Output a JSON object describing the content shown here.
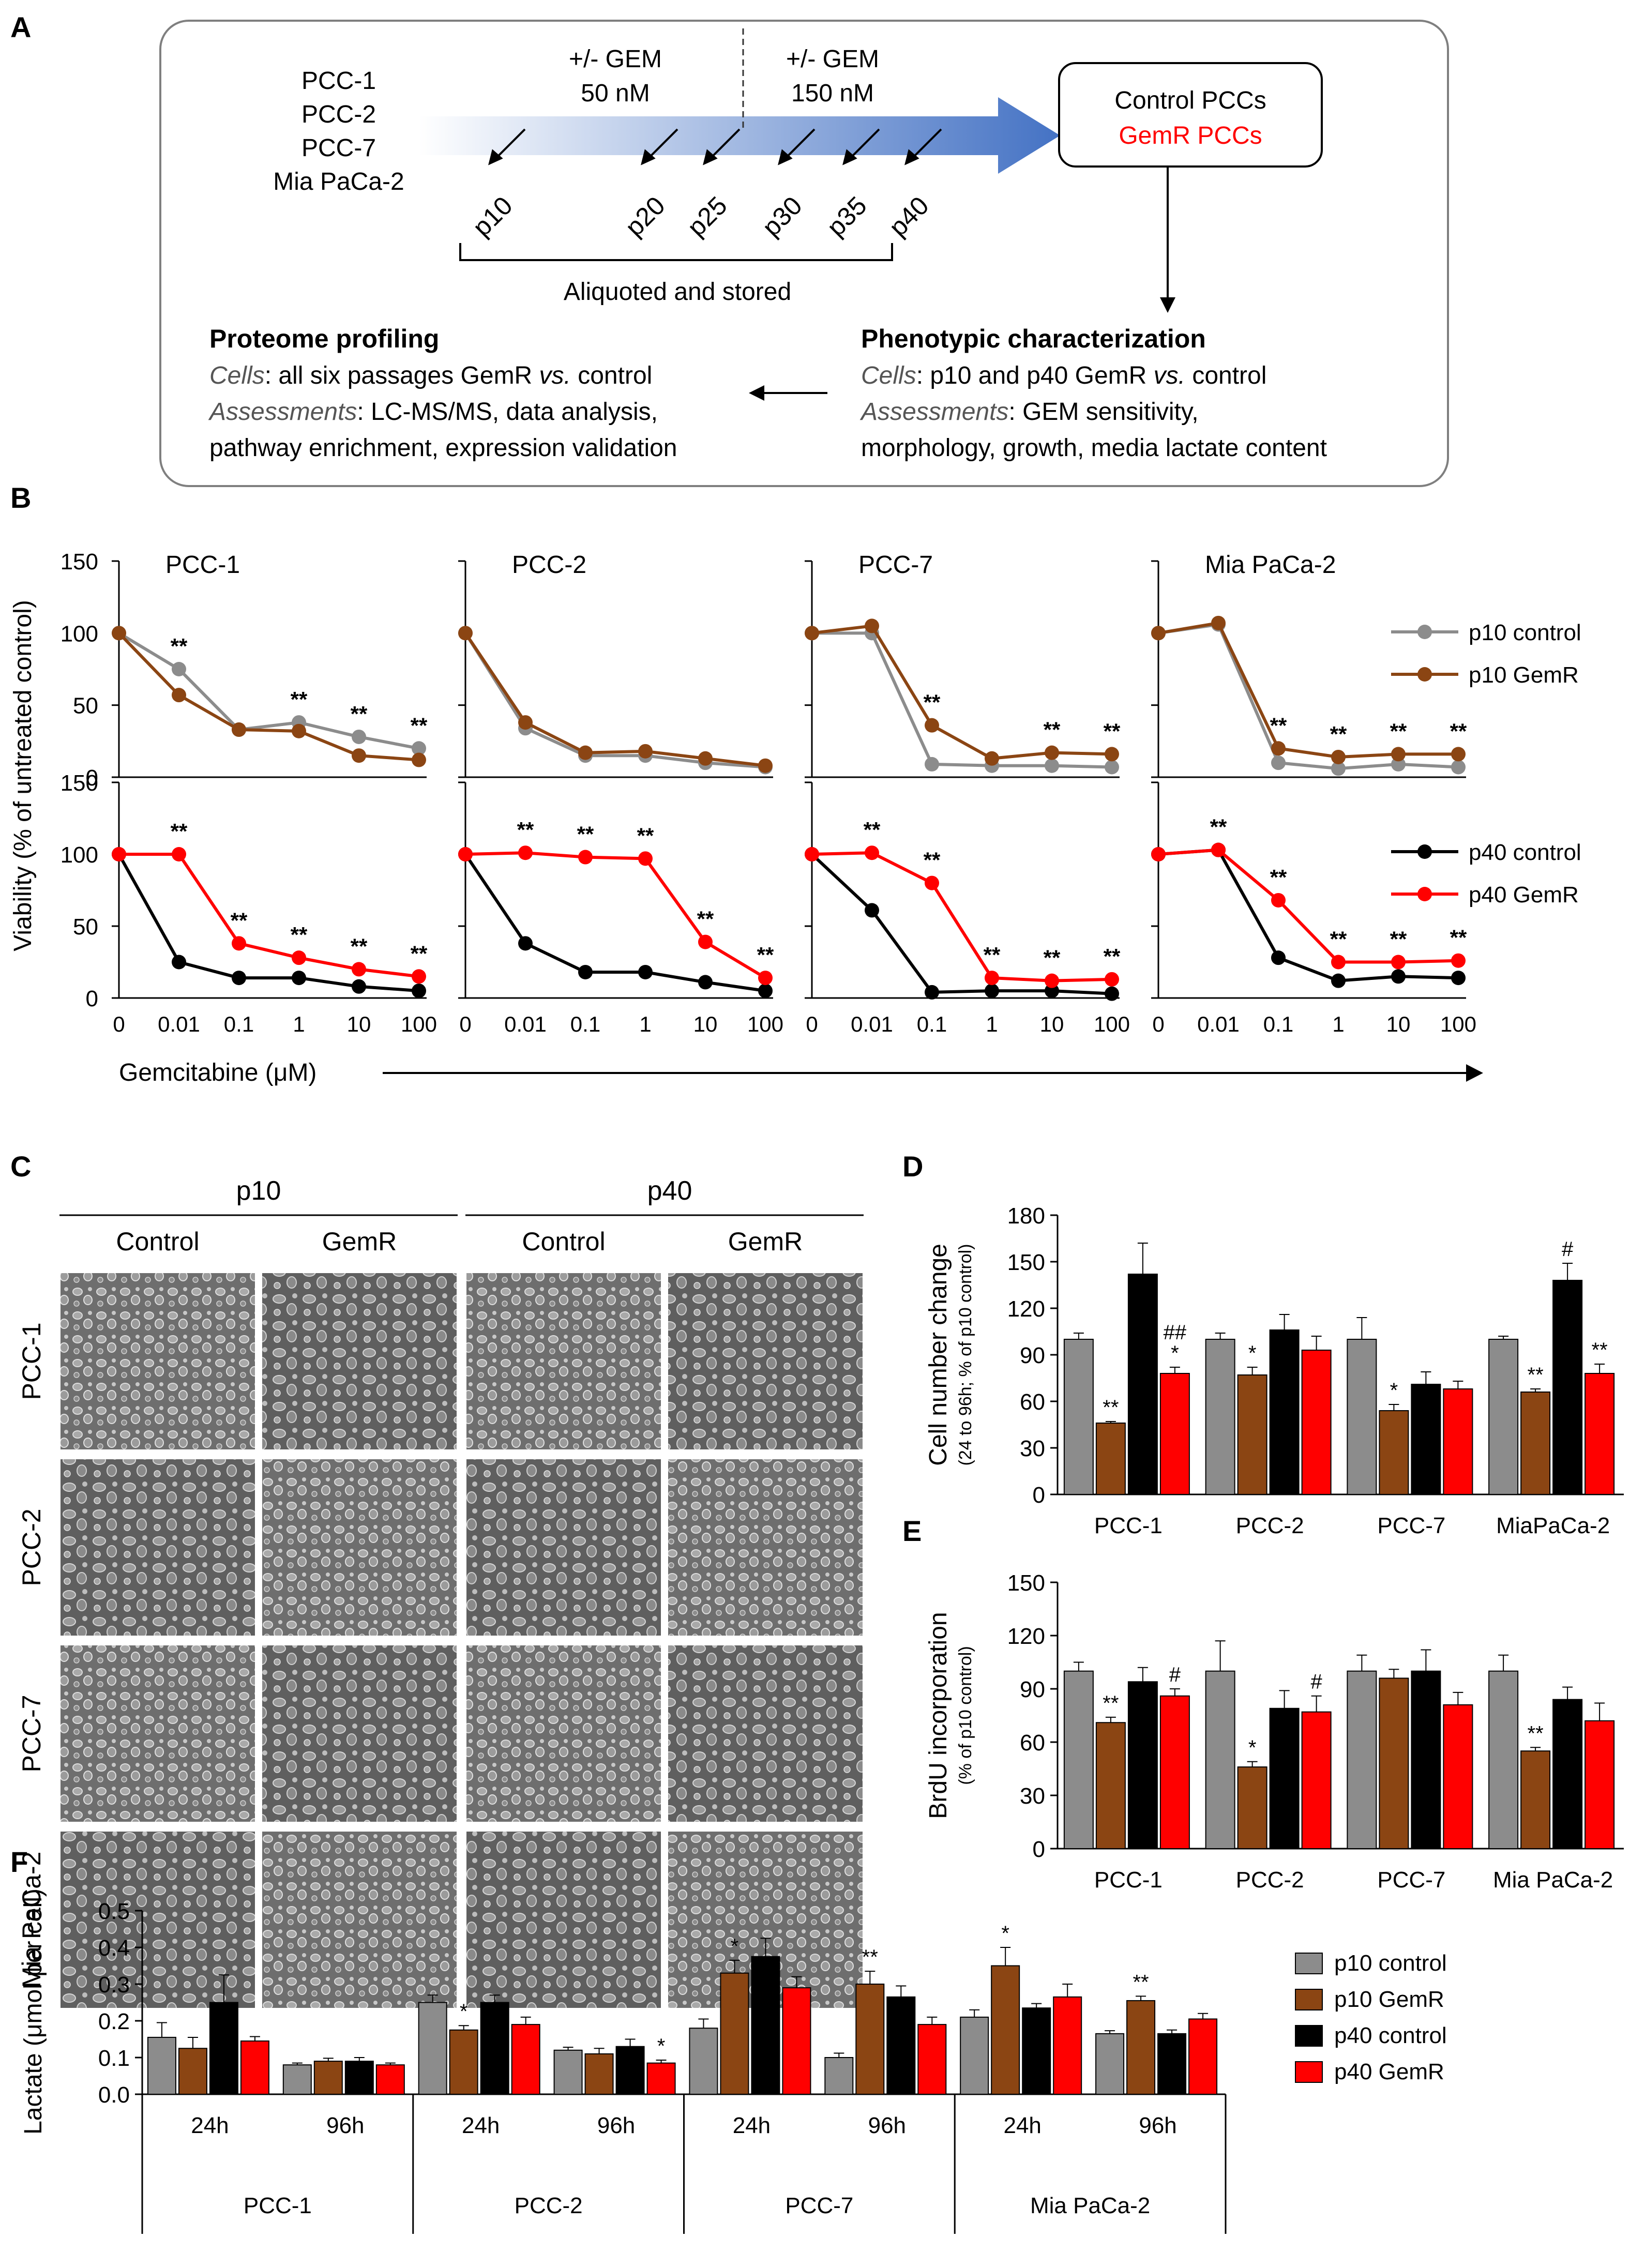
{
  "colors": {
    "p10_control": "#8c8c8c",
    "p10_gemr": "#8b4513",
    "p40_control": "#000000",
    "p40_gemr": "#ff0000",
    "arrow_blue": "#4472c4",
    "gemr_text": "#ff0000"
  },
  "panel_labels": {
    "a": "A",
    "b": "B",
    "c": "C",
    "d": "D",
    "e": "E",
    "f": "F"
  },
  "panel_a": {
    "cell_lines": [
      "PCC-1",
      "PCC-2",
      "PCC-7",
      "Mia PaCa-2"
    ],
    "gem_low": [
      "+/- GEM",
      "50 nM"
    ],
    "gem_high": [
      "+/- GEM",
      "150 nM"
    ],
    "passages": [
      "p10",
      "p20",
      "p25",
      "p30",
      "p35",
      "p40"
    ],
    "aliquoted_label": "Aliquoted and stored",
    "control_pccs": "Control PCCs",
    "gemr_pccs": "GemR PCCs",
    "proteome": {
      "title": "Proteome profiling",
      "cells_label": "Cells",
      "cells_text": ": all six passages GemR ",
      "vs": "vs.",
      "cells_tail": " control",
      "assess_label": "Assessments",
      "assess_text": ": LC-MS/MS, data analysis,",
      "assess_line2": "pathway enrichment, expression validation"
    },
    "phenotypic": {
      "title": "Phenotypic characterization",
      "cells_label": "Cells",
      "cells_text": ": p10 and p40 GemR ",
      "vs": "vs.",
      "cells_tail": " control",
      "assess_label": "Assessments",
      "assess_text": ": GEM sensitivity,",
      "assess_line2": "morphology, growth, media lactate content"
    }
  },
  "chart_data": [
    {
      "id": "B",
      "type": "line",
      "ylabel": "Viability (% of untreated control)",
      "xlabel": "Gemcitabine (μM)",
      "x_categories": [
        "0",
        "0.01",
        "0.1",
        "1",
        "10",
        "100"
      ],
      "ylim": [
        0,
        150
      ],
      "yticks": [
        "0",
        "50",
        "100",
        "150"
      ],
      "legend_top": [
        "p10 control",
        "p10 GemR"
      ],
      "legend_bottom": [
        "p40 control",
        "p40 GemR"
      ],
      "panels": [
        {
          "title": "PCC-1",
          "p10_control": [
            100,
            75,
            33,
            38,
            28,
            20
          ],
          "p10_gemr": [
            100,
            57,
            33,
            32,
            15,
            12
          ],
          "p40_control": [
            100,
            25,
            14,
            14,
            8,
            5
          ],
          "p40_gemr": [
            100,
            100,
            38,
            28,
            20,
            15
          ],
          "sig_top": [
            "",
            "**",
            "",
            "**",
            "**",
            "**"
          ],
          "sig_bottom": [
            "",
            "**",
            "**",
            "**",
            "**",
            "**"
          ]
        },
        {
          "title": "PCC-2",
          "p10_control": [
            100,
            34,
            15,
            15,
            10,
            7
          ],
          "p10_gemr": [
            100,
            38,
            17,
            18,
            13,
            8
          ],
          "p40_control": [
            100,
            38,
            18,
            18,
            11,
            5
          ],
          "p40_gemr": [
            100,
            101,
            98,
            97,
            39,
            14
          ],
          "sig_top": [
            "",
            "",
            "",
            "",
            "",
            ""
          ],
          "sig_bottom": [
            "",
            "**",
            "**",
            "**",
            "**",
            "**"
          ]
        },
        {
          "title": "PCC-7",
          "p10_control": [
            100,
            100,
            9,
            8,
            8,
            7
          ],
          "p10_gemr": [
            100,
            105,
            36,
            13,
            17,
            16
          ],
          "p40_control": [
            100,
            61,
            4,
            5,
            5,
            3
          ],
          "p40_gemr": [
            100,
            101,
            80,
            14,
            12,
            13
          ],
          "sig_top": [
            "",
            "",
            "**",
            "",
            "**",
            "**"
          ],
          "sig_bottom": [
            "",
            "**",
            "**",
            "**",
            "**",
            "**"
          ]
        },
        {
          "title": "Mia PaCa-2",
          "p10_control": [
            100,
            106,
            10,
            6,
            9,
            7
          ],
          "p10_gemr": [
            100,
            107,
            20,
            14,
            16,
            16
          ],
          "p40_control": [
            100,
            103,
            28,
            12,
            15,
            14
          ],
          "p40_gemr": [
            100,
            103,
            68,
            25,
            25,
            26
          ],
          "sig_top": [
            "",
            "",
            "**",
            "**",
            "**",
            "**"
          ],
          "sig_bottom": [
            "",
            "**",
            "**",
            "**",
            "**",
            "**"
          ]
        }
      ]
    },
    {
      "id": "D",
      "type": "bar",
      "ylabel": "Cell number change",
      "ylabel2": "(24 to 96h; % of p10 control)",
      "categories": [
        "PCC-1",
        "PCC-2",
        "PCC-7",
        "MiaPaCa-2"
      ],
      "ylim": [
        0,
        180
      ],
      "yticks": [
        "0",
        "30",
        "60",
        "90",
        "120",
        "150",
        "180"
      ],
      "series": [
        {
          "name": "p10 control",
          "values": [
            100,
            100,
            100,
            100
          ],
          "errors": [
            4,
            4,
            14,
            2
          ]
        },
        {
          "name": "p10 GemR",
          "values": [
            46,
            77,
            54,
            66
          ],
          "errors": [
            1,
            5,
            4,
            2
          ]
        },
        {
          "name": "p40 control",
          "values": [
            142,
            106,
            71,
            138
          ],
          "errors": [
            20,
            10,
            8,
            11
          ]
        },
        {
          "name": "p40 GemR",
          "values": [
            78,
            93,
            68,
            78
          ],
          "errors": [
            4,
            9,
            5,
            6
          ]
        }
      ],
      "annotations": [
        {
          "category": 0,
          "series": 1,
          "text": "**"
        },
        {
          "category": 0,
          "series": 3,
          "text": "*"
        },
        {
          "category": 0,
          "series": 3,
          "text": "##"
        },
        {
          "category": 1,
          "series": 1,
          "text": "*"
        },
        {
          "category": 2,
          "series": 1,
          "text": "*"
        },
        {
          "category": 3,
          "series": 1,
          "text": "**"
        },
        {
          "category": 3,
          "series": 2,
          "text": "#"
        },
        {
          "category": 3,
          "series": 3,
          "text": "**"
        }
      ]
    },
    {
      "id": "E",
      "type": "bar",
      "ylabel": "BrdU incorporation",
      "ylabel2": "(% of p10 control)",
      "categories": [
        "PCC-1",
        "PCC-2",
        "PCC-7",
        "Mia PaCa-2"
      ],
      "ylim": [
        0,
        150
      ],
      "yticks": [
        "0",
        "30",
        "60",
        "90",
        "120",
        "150"
      ],
      "series": [
        {
          "name": "p10 control",
          "values": [
            100,
            100,
            100,
            100
          ],
          "errors": [
            5,
            17,
            9,
            9
          ]
        },
        {
          "name": "p10 GemR",
          "values": [
            71,
            46,
            96,
            55
          ],
          "errors": [
            3,
            3,
            5,
            2
          ]
        },
        {
          "name": "p40 control",
          "values": [
            94,
            79,
            100,
            84
          ],
          "errors": [
            8,
            10,
            12,
            7
          ]
        },
        {
          "name": "p40 GemR",
          "values": [
            86,
            77,
            81,
            72
          ],
          "errors": [
            4,
            9,
            7,
            10
          ]
        }
      ],
      "annotations": [
        {
          "category": 0,
          "series": 1,
          "text": "**"
        },
        {
          "category": 0,
          "series": 3,
          "text": "#"
        },
        {
          "category": 1,
          "series": 1,
          "text": "*"
        },
        {
          "category": 1,
          "series": 3,
          "text": "#"
        },
        {
          "category": 3,
          "series": 1,
          "text": "**"
        }
      ]
    },
    {
      "id": "F",
      "type": "bar",
      "ylabel": "Lactate (μmol per cell)",
      "ylim": [
        0,
        0.5
      ],
      "yticks": [
        "0.0",
        "0.1",
        "0.2",
        "0.3",
        "0.4",
        "0.5"
      ],
      "groups": [
        "PCC-1",
        "PCC-2",
        "PCC-7",
        "Mia PaCa-2"
      ],
      "timepoints": [
        "24h",
        "96h"
      ],
      "legend": [
        "p10 control",
        "p10 GemR",
        "p40 control",
        "p40 GemR"
      ],
      "series": [
        {
          "name": "p10 control",
          "values": [
            0.155,
            0.08,
            0.25,
            0.12,
            0.18,
            0.1,
            0.21,
            0.165
          ],
          "errors": [
            0.04,
            0.005,
            0.02,
            0.008,
            0.025,
            0.012,
            0.02,
            0.008
          ]
        },
        {
          "name": "p10 GemR",
          "values": [
            0.125,
            0.09,
            0.175,
            0.11,
            0.33,
            0.3,
            0.35,
            0.255
          ],
          "errors": [
            0.03,
            0.008,
            0.012,
            0.015,
            0.035,
            0.035,
            0.05,
            0.012
          ]
        },
        {
          "name": "p40 control",
          "values": [
            0.25,
            0.09,
            0.25,
            0.13,
            0.375,
            0.265,
            0.235,
            0.165
          ],
          "errors": [
            0.075,
            0.01,
            0.02,
            0.02,
            0.05,
            0.03,
            0.012,
            0.01
          ]
        },
        {
          "name": "p40 GemR",
          "values": [
            0.145,
            0.08,
            0.19,
            0.085,
            0.29,
            0.19,
            0.265,
            0.205
          ],
          "errors": [
            0.012,
            0.005,
            0.02,
            0.008,
            0.03,
            0.02,
            0.035,
            0.015
          ]
        }
      ],
      "annotations": [
        {
          "bar": 2,
          "series": 1,
          "text": "*"
        },
        {
          "bar": 3,
          "series": 3,
          "text": "*"
        },
        {
          "bar": 4,
          "series": 1,
          "text": "*"
        },
        {
          "bar": 5,
          "series": 1,
          "text": "**"
        },
        {
          "bar": 6,
          "series": 1,
          "text": "*"
        },
        {
          "bar": 7,
          "series": 1,
          "text": "**"
        }
      ]
    }
  ],
  "panel_c": {
    "passage_headers": [
      "p10",
      "p40"
    ],
    "condition_headers": [
      "Control",
      "GemR",
      "Control",
      "GemR"
    ],
    "row_labels": [
      "PCC-1",
      "PCC-2",
      "PCC-7",
      "Mia PaCa-2"
    ]
  }
}
